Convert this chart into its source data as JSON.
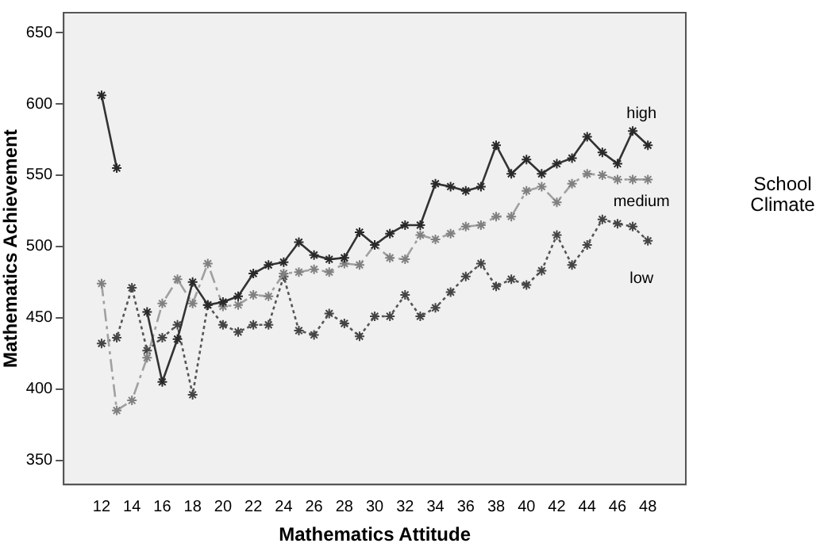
{
  "chart_data": {
    "type": "line",
    "xlabel": "Mathematics Attitude",
    "ylabel": "Mathematics Achievement",
    "legend_title": "School Climate",
    "x": [
      12,
      13,
      14,
      15,
      16,
      17,
      18,
      19,
      20,
      21,
      22,
      23,
      24,
      25,
      26,
      27,
      28,
      29,
      30,
      31,
      32,
      33,
      34,
      35,
      36,
      37,
      38,
      39,
      40,
      41,
      42,
      43,
      44,
      45,
      46,
      47,
      48
    ],
    "xlim": [
      9.5,
      50.5
    ],
    "xticks": [
      12,
      14,
      16,
      18,
      20,
      22,
      24,
      26,
      28,
      30,
      32,
      34,
      36,
      38,
      40,
      42,
      44,
      46,
      48
    ],
    "ylim": [
      333,
      664
    ],
    "yticks": [
      350,
      400,
      450,
      500,
      550,
      600,
      650
    ],
    "grid": false,
    "legend": false,
    "marker": "cross",
    "series": [
      {
        "name": "high",
        "color": "#333333",
        "line_style": "solid",
        "values": [
          606,
          555,
          null,
          454,
          405,
          435,
          475,
          459,
          461,
          465,
          481,
          487,
          489,
          503,
          494,
          491,
          492,
          510,
          501,
          509,
          515,
          515,
          544,
          542,
          539,
          542,
          571,
          551,
          561,
          551,
          558,
          562,
          577,
          566,
          558,
          581,
          571
        ]
      },
      {
        "name": "medium",
        "color": "#a0a0a0",
        "line_style": "dashed",
        "values": [
          474,
          385,
          392,
          422,
          460,
          477,
          460,
          488,
          458,
          459,
          466,
          465,
          481,
          482,
          484,
          482,
          488,
          487,
          501,
          492,
          491,
          508,
          505,
          509,
          514,
          515,
          521,
          521,
          539,
          542,
          531,
          544,
          551,
          550,
          547,
          547,
          547
        ]
      },
      {
        "name": "low",
        "color": "#555555",
        "line_style": "dotted",
        "values": [
          432,
          436,
          471,
          427,
          436,
          445,
          396,
          459,
          445,
          440,
          445,
          445,
          479,
          441,
          438,
          453,
          446,
          437,
          451,
          451,
          466,
          451,
          457,
          468,
          479,
          488,
          472,
          477,
          473,
          483,
          508,
          487,
          501,
          519,
          516,
          514,
          504
        ]
      }
    ]
  }
}
